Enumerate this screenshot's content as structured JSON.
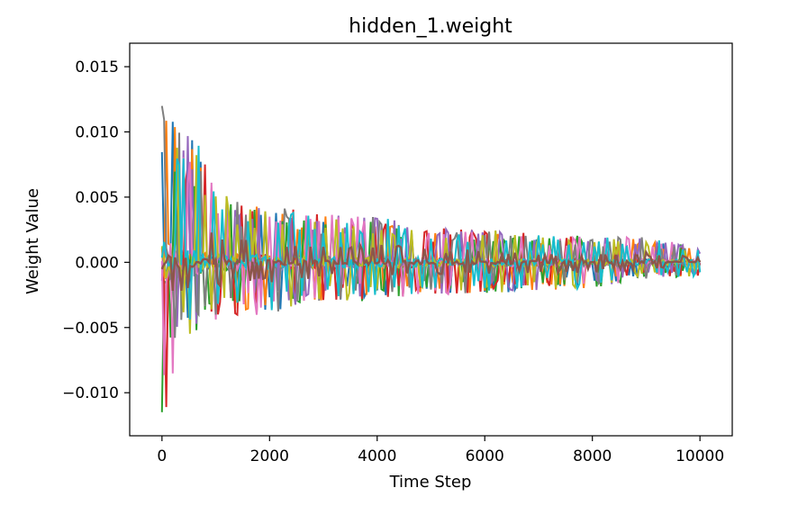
{
  "chart_data": {
    "type": "line",
    "title": "hidden_1.weight",
    "xlabel": "Time Step",
    "ylabel": "Weight Value",
    "xlim": [
      -600,
      10600
    ],
    "ylim": [
      -0.0133,
      0.0168
    ],
    "xticks": [
      0,
      2000,
      4000,
      6000,
      8000,
      10000
    ],
    "xtick_labels": [
      "0",
      "2000",
      "4000",
      "6000",
      "8000",
      "10000"
    ],
    "yticks": [
      -0.01,
      -0.005,
      0.0,
      0.005,
      0.01,
      0.015
    ],
    "ytick_labels": [
      "−0.010",
      "−0.005",
      "0.000",
      "0.005",
      "0.010",
      "0.015"
    ],
    "grid": false,
    "legend": "none",
    "colors": [
      "#1f77b4",
      "#ff7f0e",
      "#2ca02c",
      "#d62728",
      "#9467bd",
      "#8c564b",
      "#e377c2",
      "#7f7f7f",
      "#bcbd22",
      "#17becf"
    ],
    "envelope": {
      "x": [
        0,
        100,
        200,
        400,
        600,
        800,
        1000,
        1500,
        2000,
        3000,
        4000,
        5000,
        6000,
        7000,
        8000,
        9000,
        10000
      ],
      "upper": [
        0.0153,
        0.0118,
        0.0123,
        0.0098,
        0.0102,
        0.0076,
        0.0055,
        0.0048,
        0.0044,
        0.0038,
        0.0035,
        0.0028,
        0.0026,
        0.0022,
        0.002,
        0.002,
        0.0012
      ],
      "lower": [
        -0.0118,
        -0.0115,
        -0.0098,
        -0.006,
        -0.0055,
        -0.0048,
        -0.005,
        -0.0044,
        -0.004,
        -0.003,
        -0.003,
        -0.0025,
        -0.0024,
        -0.0022,
        -0.002,
        -0.0013,
        -0.0011
      ]
    }
  }
}
